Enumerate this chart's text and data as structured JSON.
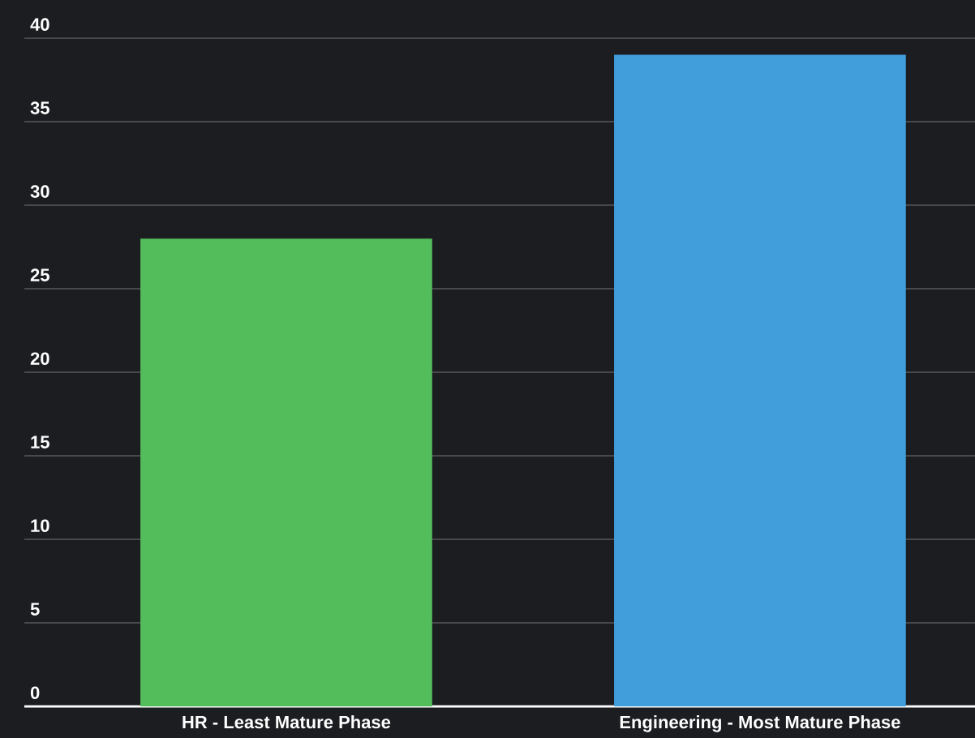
{
  "chart_data": {
    "type": "bar",
    "categories": [
      "HR - Least Mature Phase",
      "Engineering - Most Mature Phase"
    ],
    "values": [
      28,
      39
    ],
    "colors": [
      "#53bc5b",
      "#429edb"
    ],
    "ylim": [
      0,
      40
    ],
    "yticks": [
      0,
      5,
      10,
      15,
      20,
      25,
      30,
      35,
      40
    ],
    "grid": "y"
  }
}
